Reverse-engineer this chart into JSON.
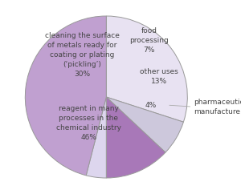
{
  "slices": [
    {
      "label": "cleaning the surface\nof metals ready for\ncoating or plating\n(‘pickling’)\n30%",
      "value": 30,
      "color": "#e8e2f2"
    },
    {
      "label": "food\nprocessing\n7%",
      "value": 7,
      "color": "#cdc8dc"
    },
    {
      "label": "other uses\n13%",
      "value": 13,
      "color": "#a878b8"
    },
    {
      "label": "4%",
      "value": 4,
      "color": "#ddd6ee"
    },
    {
      "label": "reagent in many\nprocesses in the\nchemical industry\n46%",
      "value": 46,
      "color": "#c0a0d0"
    }
  ],
  "pharma_label": "pharmaceutical\nmanufacture",
  "edge_color": "#999999",
  "edge_width": 0.7,
  "startangle": 90,
  "font_size": 6.5,
  "label_color": "#444444",
  "background_color": "#ffffff"
}
